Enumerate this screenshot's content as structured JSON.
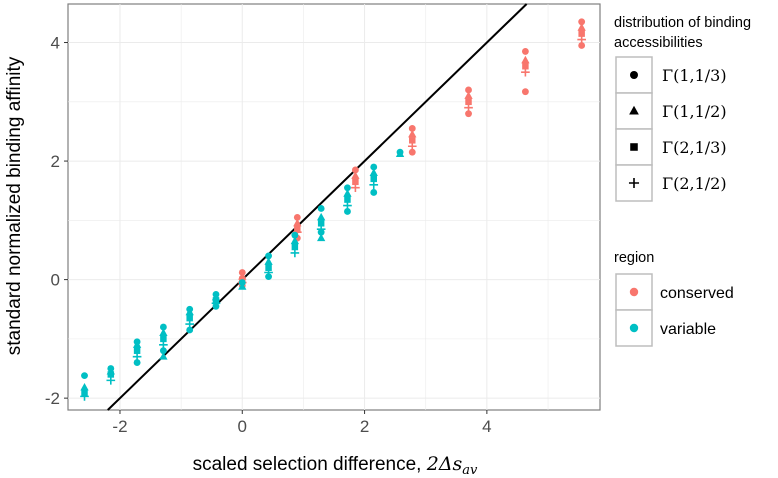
{
  "chart_data": {
    "type": "scatter",
    "title": "",
    "xlabel": "scaled selection difference,",
    "xlabel_math": "2Δs",
    "xlabel_sub": "av",
    "ylabel": "standard normalized binding affinity",
    "xlim": [
      -2.85,
      5.85
    ],
    "ylim": [
      -2.2,
      4.65
    ],
    "x_ticks": [
      -2,
      0,
      2,
      4
    ],
    "y_ticks": [
      -2,
      0,
      2,
      4
    ],
    "grid": true,
    "reference_line": {
      "slope": 1,
      "intercept": 0,
      "color": "#000000"
    },
    "legends": [
      {
        "title_lines": [
          "distribution of binding",
          "accessibilities"
        ],
        "kind": "shape",
        "placement": "top-right",
        "entries": [
          {
            "shape": "circle",
            "label": "Γ(1,1/3)"
          },
          {
            "shape": "triangle",
            "label": "Γ(1,1/2)"
          },
          {
            "shape": "square",
            "label": "Γ(2,1/3)"
          },
          {
            "shape": "plus",
            "label": "Γ(2,1/2)"
          }
        ]
      },
      {
        "title_lines": [
          "region"
        ],
        "kind": "color",
        "placement": "right",
        "entries": [
          {
            "color": "#F8766D",
            "label": "conserved"
          },
          {
            "color": "#00BFC4",
            "label": "variable"
          }
        ]
      }
    ],
    "colors": {
      "conserved": "#F8766D",
      "variable": "#00BFC4"
    },
    "series": [
      {
        "region": "variable",
        "x": -2.58,
        "y": [
          -1.62,
          -1.82,
          -1.92,
          -1.97
        ]
      },
      {
        "region": "variable",
        "x": -2.15,
        "y": [
          -1.5,
          -1.55,
          -1.6,
          -1.7
        ]
      },
      {
        "region": "variable",
        "x": -1.72,
        "y": [
          -1.05,
          -1.1,
          -1.2,
          -1.3,
          -1.4
        ]
      },
      {
        "region": "variable",
        "x": -1.29,
        "y": [
          -0.8,
          -0.9,
          -1.0,
          -1.1,
          -1.2,
          -1.3
        ]
      },
      {
        "region": "variable",
        "x": -0.86,
        "y": [
          -0.5,
          -0.55,
          -0.65,
          -0.75,
          -0.85
        ]
      },
      {
        "region": "variable",
        "x": -0.43,
        "y": [
          -0.25,
          -0.3,
          -0.35,
          -0.4,
          -0.45
        ]
      },
      {
        "region": "conserved",
        "x": 0.0,
        "y": [
          0.12,
          0.05,
          0.0,
          -0.05,
          -0.1
        ]
      },
      {
        "region": "variable",
        "x": 0.0,
        "y": [
          -0.05,
          -0.12
        ]
      },
      {
        "region": "variable",
        "x": 0.43,
        "y": [
          0.4,
          0.3,
          0.2,
          0.12,
          0.05
        ]
      },
      {
        "region": "conserved",
        "x": 0.9,
        "y": [
          1.05,
          0.95,
          0.85,
          0.8,
          0.7
        ]
      },
      {
        "region": "variable",
        "x": 0.86,
        "y": [
          0.75,
          0.65,
          0.55,
          0.45
        ]
      },
      {
        "region": "variable",
        "x": 1.29,
        "y": [
          1.2,
          1.05,
          0.95,
          0.85,
          0.8,
          0.7
        ]
      },
      {
        "region": "variable",
        "x": 1.72,
        "y": [
          1.55,
          1.45,
          1.35,
          1.25,
          1.15
        ]
      },
      {
        "region": "conserved",
        "x": 1.85,
        "y": [
          1.85,
          1.75,
          1.65,
          1.55
        ]
      },
      {
        "region": "variable",
        "x": 2.15,
        "y": [
          1.9,
          1.8,
          1.7,
          1.6,
          1.47
        ]
      },
      {
        "region": "variable",
        "x": 2.58,
        "y": [
          2.15,
          2.12
        ]
      },
      {
        "region": "conserved",
        "x": 2.78,
        "y": [
          2.55,
          2.45,
          2.35,
          2.25,
          2.15
        ]
      },
      {
        "region": "conserved",
        "x": 3.7,
        "y": [
          3.2,
          3.1,
          3.0,
          2.9,
          2.8
        ]
      },
      {
        "region": "conserved",
        "x": 4.63,
        "y": [
          3.85,
          3.7,
          3.6,
          3.5,
          3.17
        ]
      },
      {
        "region": "conserved",
        "x": 5.55,
        "y": [
          4.35,
          4.25,
          4.15,
          4.05,
          3.95
        ]
      }
    ]
  }
}
